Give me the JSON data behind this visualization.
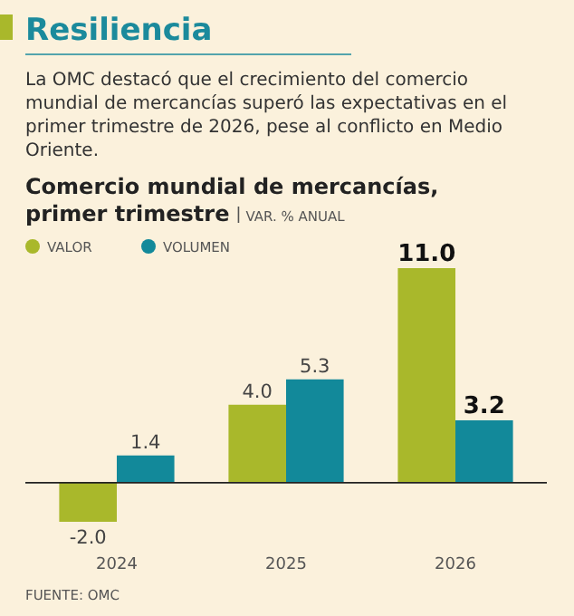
{
  "chart_data": {
    "type": "bar",
    "title": "Resiliencia",
    "subtitle": "La OMC destacó que el crecimiento del comercio mundial de mercancías superó las expectativas en el primer trimestre de 2026, pese al conflicto en Medio Oriente.",
    "ylabel": "VAR. % ANUAL",
    "annotations": [
      "Comercio mundial de mercancías, primer trimestre",
      "FUENTE: OMC"
    ],
    "categories": [
      "2024",
      "2025",
      "2026"
    ],
    "series": [
      {
        "name": "VALOR",
        "color": "#a9b82b",
        "values": [
          -2.0,
          4.0,
          11.0
        ],
        "value_labels": [
          "-2.0",
          "4.0",
          "11.0"
        ]
      },
      {
        "name": "VOLUMEN",
        "color": "#12899a",
        "values": [
          1.4,
          5.3,
          3.2
        ],
        "value_labels": [
          "1.4",
          "5.3",
          "3.2"
        ]
      }
    ],
    "legend": "top left"
  }
}
